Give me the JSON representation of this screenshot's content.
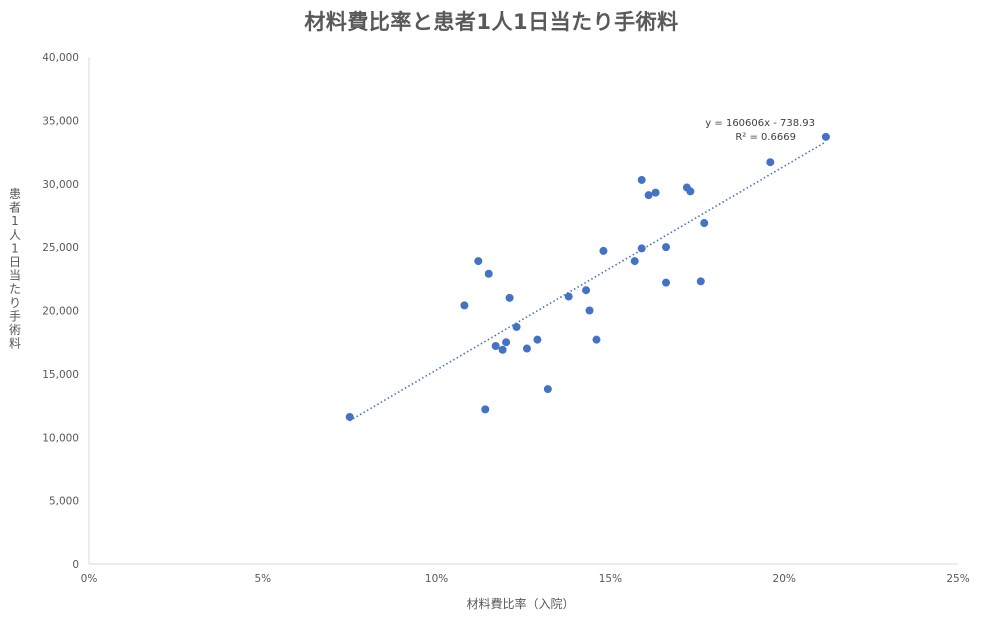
{
  "chart_data": {
    "type": "scatter",
    "title": "材料費比率と患者1人1日当たり手術料",
    "xlabel": "材料費比率（入院）",
    "ylabel": "患者1人1日当たり手術料",
    "xlim": [
      0,
      0.25
    ],
    "ylim": [
      0,
      40000
    ],
    "x_ticks": [
      0,
      0.05,
      0.1,
      0.15,
      0.2,
      0.25
    ],
    "x_tick_labels": [
      "0%",
      "5%",
      "10%",
      "15%",
      "20%",
      "25%"
    ],
    "y_ticks": [
      0,
      5000,
      10000,
      15000,
      20000,
      25000,
      30000,
      35000,
      40000
    ],
    "y_tick_labels": [
      "0",
      "5,000",
      "10,000",
      "15,000",
      "20,000",
      "25,000",
      "30,000",
      "35,000",
      "40,000"
    ],
    "grid": false,
    "color": "#4472C4",
    "points": [
      {
        "x": 0.075,
        "y": 11600
      },
      {
        "x": 0.108,
        "y": 20400
      },
      {
        "x": 0.112,
        "y": 23900
      },
      {
        "x": 0.114,
        "y": 12200
      },
      {
        "x": 0.115,
        "y": 22900
      },
      {
        "x": 0.117,
        "y": 17200
      },
      {
        "x": 0.119,
        "y": 16900
      },
      {
        "x": 0.12,
        "y": 17500
      },
      {
        "x": 0.121,
        "y": 21000
      },
      {
        "x": 0.123,
        "y": 18700
      },
      {
        "x": 0.126,
        "y": 17000
      },
      {
        "x": 0.129,
        "y": 17700
      },
      {
        "x": 0.132,
        "y": 13800
      },
      {
        "x": 0.138,
        "y": 21100
      },
      {
        "x": 0.143,
        "y": 21600
      },
      {
        "x": 0.144,
        "y": 20000
      },
      {
        "x": 0.146,
        "y": 17700
      },
      {
        "x": 0.148,
        "y": 24700
      },
      {
        "x": 0.157,
        "y": 23900
      },
      {
        "x": 0.159,
        "y": 24900
      },
      {
        "x": 0.159,
        "y": 30300
      },
      {
        "x": 0.161,
        "y": 29100
      },
      {
        "x": 0.163,
        "y": 29300
      },
      {
        "x": 0.166,
        "y": 25000
      },
      {
        "x": 0.166,
        "y": 22200
      },
      {
        "x": 0.172,
        "y": 29700
      },
      {
        "x": 0.173,
        "y": 29400
      },
      {
        "x": 0.176,
        "y": 22300
      },
      {
        "x": 0.177,
        "y": 26900
      },
      {
        "x": 0.196,
        "y": 31700
      },
      {
        "x": 0.212,
        "y": 33700
      }
    ],
    "trendline": {
      "type": "linear",
      "slope": 160606,
      "intercept": -738.93,
      "x_range": [
        0.075,
        0.212
      ],
      "equation": "y = 160606x - 738.93",
      "r_squared": "R² = 0.6669",
      "color": "#4472C4"
    }
  }
}
